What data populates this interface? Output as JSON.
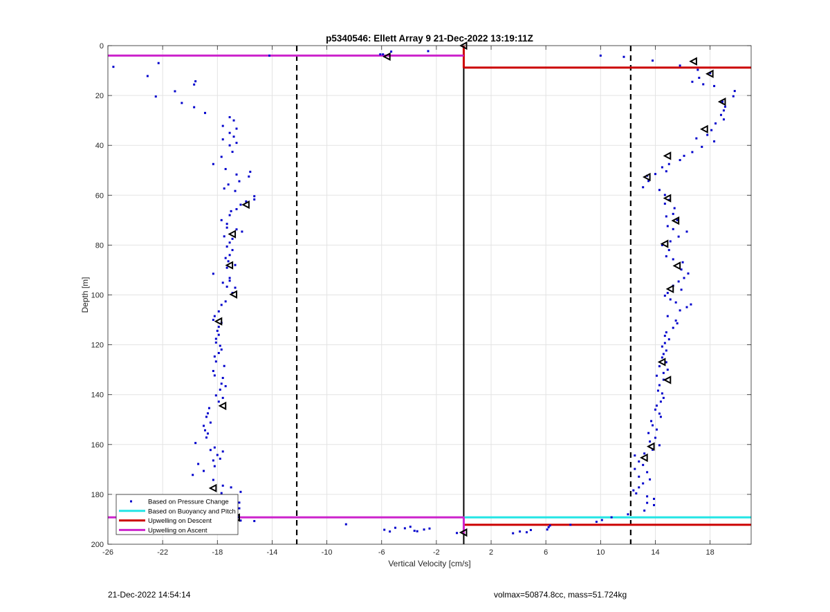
{
  "chart_data": {
    "type": "scatter",
    "title": "p5340546: Ellett Array 9 21-Dec-2022 13:19:11Z",
    "xlabel": "Vertical Velocity [cm/s]",
    "ylabel": "Depth [m]",
    "xlim": [
      -26,
      21
    ],
    "ylim": [
      0,
      200
    ],
    "y_reversed": true,
    "grid": true,
    "x_ticks": [
      -26,
      -22,
      -18,
      -14,
      -10,
      -6,
      -2,
      2,
      6,
      10,
      14,
      18
    ],
    "y_ticks": [
      0,
      20,
      40,
      60,
      80,
      100,
      120,
      140,
      160,
      180,
      200
    ],
    "reference_lines": {
      "dashed_x": [
        -12.2,
        12.2
      ],
      "solid_x": 0
    },
    "legend_position": "bottom-left",
    "legend": [
      "Based on Pressure Change",
      "Based on Buoyancy and Pitch",
      "Upwelling on Descent",
      "Upwelling on Ascent"
    ],
    "colors": {
      "pressure_points": "#0000cc",
      "buoyancy_pitch": "#22e5e5",
      "upwelling_descent": "#cc0000",
      "upwelling_ascent": "#cc22cc",
      "markers": "#000000"
    },
    "series": [
      {
        "name": "Based on Pressure Change",
        "points": [
          [
            -25.6,
            8.5
          ],
          [
            -22.3,
            7
          ],
          [
            -23.1,
            12.2
          ],
          [
            -22.5,
            20.4
          ],
          [
            -21.1,
            18.3
          ],
          [
            -20.6,
            23
          ],
          [
            -19.6,
            14.3
          ],
          [
            -19.7,
            15.6
          ],
          [
            -19.7,
            24.7
          ],
          [
            -18.9,
            27
          ],
          [
            -17.1,
            28.7
          ],
          [
            -16.8,
            30
          ],
          [
            -17.6,
            32.2
          ],
          [
            -16.6,
            33.3
          ],
          [
            -17.1,
            35
          ],
          [
            -16.8,
            36.5
          ],
          [
            -17.6,
            37.6
          ],
          [
            -16.6,
            39
          ],
          [
            -17.1,
            40
          ],
          [
            -16.9,
            42.6
          ],
          [
            -17.7,
            44.6
          ],
          [
            -18.3,
            47.5
          ],
          [
            -17.4,
            49.5
          ],
          [
            -16.6,
            51.7
          ],
          [
            -15.6,
            50.6
          ],
          [
            -15.7,
            52.5
          ],
          [
            -16.4,
            54.4
          ],
          [
            -17.2,
            55.7
          ],
          [
            -17.5,
            57.3
          ],
          [
            -16.7,
            58.3
          ],
          [
            -15.3,
            60.4
          ],
          [
            -15.3,
            61.7
          ],
          [
            -15.9,
            62.5
          ],
          [
            -16.3,
            63.8
          ],
          [
            -16.6,
            65.6
          ],
          [
            -17.0,
            66.4
          ],
          [
            -17.1,
            68
          ],
          [
            -17.7,
            70
          ],
          [
            -17.3,
            71.5
          ],
          [
            -17.3,
            73
          ],
          [
            -16.6,
            73.7
          ],
          [
            -16.2,
            74.6
          ],
          [
            -17.5,
            76.5
          ],
          [
            -16.9,
            77.5
          ],
          [
            -17.1,
            79
          ],
          [
            -17.3,
            80.6
          ],
          [
            -16.9,
            82
          ],
          [
            -17.1,
            84
          ],
          [
            -17.4,
            85.2
          ],
          [
            -17.2,
            86.5
          ],
          [
            -16.7,
            88
          ],
          [
            -17.3,
            89.1
          ],
          [
            -18.3,
            91.5
          ],
          [
            -17.1,
            93.2
          ],
          [
            -17.1,
            94.3
          ],
          [
            -17.6,
            95.1
          ],
          [
            -17.3,
            96.7
          ],
          [
            -16.7,
            97.1
          ],
          [
            -16.9,
            99.2
          ],
          [
            -17.4,
            102.6
          ],
          [
            -17.7,
            104
          ],
          [
            -17.9,
            106.6
          ],
          [
            -18.2,
            108.5
          ],
          [
            -18.3,
            110
          ],
          [
            -17.7,
            111.2
          ],
          [
            -17.9,
            112.8
          ],
          [
            -18.0,
            114.4
          ],
          [
            -17.9,
            116
          ],
          [
            -18.1,
            117.6
          ],
          [
            -18.1,
            119.1
          ],
          [
            -17.8,
            120.4
          ],
          [
            -17.7,
            121.9
          ],
          [
            -17.9,
            123.3
          ],
          [
            -18.2,
            124.7
          ],
          [
            -18.1,
            126.7
          ],
          [
            -17.5,
            128.5
          ],
          [
            -18.3,
            130.5
          ],
          [
            -18.2,
            132.3
          ],
          [
            -17.6,
            133.3
          ],
          [
            -17.7,
            135.6
          ],
          [
            -17.4,
            136.6
          ],
          [
            -17.8,
            138
          ],
          [
            -18.1,
            140.3
          ],
          [
            -17.6,
            141.3
          ],
          [
            -17.9,
            142.8
          ],
          [
            -18.6,
            145.4
          ],
          [
            -18.7,
            147.5
          ],
          [
            -18.8,
            148.9
          ],
          [
            -18.5,
            151.2
          ],
          [
            -19.0,
            152.5
          ],
          [
            -18.9,
            154.3
          ],
          [
            -18.7,
            155.6
          ],
          [
            -18.8,
            157.2
          ],
          [
            -19.6,
            159.4
          ],
          [
            -18.2,
            161.2
          ],
          [
            -18.5,
            162.2
          ],
          [
            -17.6,
            162.8
          ],
          [
            -18.0,
            164.2
          ],
          [
            -17.8,
            165.7
          ],
          [
            -18.3,
            166.4
          ],
          [
            -19.4,
            167.8
          ],
          [
            -18.2,
            168.7
          ],
          [
            -19.0,
            170.6
          ],
          [
            -19.8,
            172.2
          ],
          [
            -18.3,
            174.2
          ],
          [
            -17.6,
            176.5
          ],
          [
            -17.0,
            177.2
          ],
          [
            -17.7,
            179.5
          ],
          [
            -16.3,
            179
          ],
          [
            -16.9,
            181.4
          ],
          [
            -16.4,
            183.3
          ],
          [
            -16.4,
            185.6
          ],
          [
            -16.7,
            187.4
          ],
          [
            -16.5,
            189.1
          ],
          [
            -16.3,
            190.5
          ],
          [
            -15.3,
            190.7
          ],
          [
            -14.2,
            4
          ],
          [
            -5.9,
            3.5
          ],
          [
            -5.3,
            2.4
          ],
          [
            -2.6,
            2.2
          ],
          [
            -6.1,
            3.5
          ],
          [
            -8.6,
            192
          ],
          [
            -5.8,
            194.2
          ],
          [
            -5.4,
            194.9
          ],
          [
            -5.0,
            193.4
          ],
          [
            -4.3,
            193.6
          ],
          [
            -3.9,
            193.0
          ],
          [
            -3.4,
            194.8
          ],
          [
            -2.9,
            194.1
          ],
          [
            -2.5,
            193.7
          ],
          [
            -3.6,
            194.6
          ],
          [
            -0.5,
            195.5
          ],
          [
            10.0,
            4
          ],
          [
            11.7,
            4.5
          ],
          [
            13.8,
            6
          ],
          [
            15.8,
            8
          ],
          [
            17.1,
            9.7
          ],
          [
            18.0,
            11
          ],
          [
            17.2,
            12.9
          ],
          [
            16.7,
            14.5
          ],
          [
            17.5,
            15.5
          ],
          [
            18.3,
            16.2
          ],
          [
            19.8,
            18.2
          ],
          [
            19.7,
            20.3
          ],
          [
            18.9,
            22.5
          ],
          [
            19.1,
            24.5
          ],
          [
            19.0,
            26
          ],
          [
            18.8,
            27.8
          ],
          [
            19.0,
            29.6
          ],
          [
            18.4,
            31.2
          ],
          [
            18.1,
            33.9
          ],
          [
            17.8,
            35.8
          ],
          [
            17.0,
            37.2
          ],
          [
            18.3,
            38.4
          ],
          [
            17.4,
            40.6
          ],
          [
            16.7,
            42.7
          ],
          [
            16.1,
            44.2
          ],
          [
            15.8,
            45.9
          ],
          [
            15.0,
            47.5
          ],
          [
            14.5,
            48.8
          ],
          [
            14.8,
            50.4
          ],
          [
            14.0,
            51.5
          ],
          [
            13.4,
            52.2
          ],
          [
            13.5,
            54.3
          ],
          [
            13.1,
            56.8
          ],
          [
            14.3,
            57.9
          ],
          [
            14.7,
            59.9
          ],
          [
            15.0,
            61.9
          ],
          [
            14.7,
            63.4
          ],
          [
            15.4,
            65.2
          ],
          [
            15.3,
            67.5
          ],
          [
            14.8,
            68.5
          ],
          [
            15.6,
            70
          ],
          [
            14.9,
            72.4
          ],
          [
            15.3,
            73.6
          ],
          [
            16.3,
            74.6
          ],
          [
            15.7,
            76.6
          ],
          [
            15.1,
            78.5
          ],
          [
            14.5,
            80
          ],
          [
            15.0,
            82
          ],
          [
            14.8,
            84.5
          ],
          [
            15.3,
            85.7
          ],
          [
            16.0,
            86.9
          ],
          [
            15.9,
            89.8
          ],
          [
            16.4,
            91.4
          ],
          [
            16.1,
            93.2
          ],
          [
            15.7,
            94.6
          ],
          [
            15.3,
            96.3
          ],
          [
            15.9,
            97.9
          ],
          [
            14.9,
            99.2
          ],
          [
            14.7,
            100.3
          ],
          [
            15.1,
            101.8
          ],
          [
            15.5,
            103
          ],
          [
            16.6,
            103.8
          ],
          [
            16.3,
            104.9
          ],
          [
            15.8,
            106.2
          ],
          [
            14.9,
            108.5
          ],
          [
            15.5,
            110.3
          ],
          [
            15.6,
            111.4
          ],
          [
            15.3,
            113.2
          ],
          [
            14.8,
            115
          ],
          [
            14.7,
            116.4
          ],
          [
            15.0,
            117.8
          ],
          [
            14.7,
            119.3
          ],
          [
            14.5,
            120.7
          ],
          [
            14.8,
            122.3
          ],
          [
            14.6,
            123.7
          ],
          [
            14.5,
            125.1
          ],
          [
            14.8,
            127
          ],
          [
            14.3,
            128.6
          ],
          [
            14.9,
            130
          ],
          [
            14.6,
            131.3
          ],
          [
            14.1,
            132.4
          ],
          [
            14.6,
            134
          ],
          [
            14.3,
            136.2
          ],
          [
            14.2,
            138.4
          ],
          [
            14.5,
            139.5
          ],
          [
            14.6,
            141.3
          ],
          [
            14.4,
            142.8
          ],
          [
            14.1,
            144.4
          ],
          [
            14.0,
            146
          ],
          [
            14.3,
            147.6
          ],
          [
            14.4,
            148.9
          ],
          [
            13.7,
            150.6
          ],
          [
            13.8,
            152.3
          ],
          [
            14.1,
            154
          ],
          [
            13.5,
            155.4
          ],
          [
            14.0,
            157.3
          ],
          [
            13.6,
            158.8
          ],
          [
            14.3,
            160.3
          ],
          [
            13.8,
            162.1
          ],
          [
            13.2,
            163.6
          ],
          [
            12.5,
            164.4
          ],
          [
            12.8,
            166.8
          ],
          [
            13.1,
            168.2
          ],
          [
            12.5,
            169.8
          ],
          [
            13.4,
            171.1
          ],
          [
            12.8,
            172.9
          ],
          [
            13.6,
            174
          ],
          [
            13.1,
            175.6
          ],
          [
            12.8,
            177.2
          ],
          [
            12.4,
            178.4
          ],
          [
            12.6,
            179.6
          ],
          [
            13.4,
            180.8
          ],
          [
            13.9,
            181.8
          ],
          [
            13.4,
            183.4
          ],
          [
            13.9,
            184.3
          ],
          [
            13.2,
            186.5
          ],
          [
            12.0,
            188
          ],
          [
            10.8,
            189.2
          ],
          [
            10.1,
            190.3
          ],
          [
            9.7,
            191
          ],
          [
            7.8,
            192.2
          ],
          [
            6.3,
            192.5
          ],
          [
            6.2,
            193.2
          ],
          [
            6.1,
            194.1
          ],
          [
            4.9,
            194.3
          ],
          [
            4.6,
            195.2
          ],
          [
            4.1,
            194.9
          ],
          [
            3.6,
            195.6
          ]
        ]
      },
      {
        "name": "Based on Buoyancy and Pitch",
        "lines": [
          {
            "x": [
              0,
              21
            ],
            "y": 189.2
          }
        ]
      },
      {
        "name": "Upwelling on Descent",
        "lines": [
          {
            "x": [
              0,
              21
            ],
            "y": 8.8
          },
          {
            "x": [
              0,
              21
            ],
            "y": 192.2
          },
          {
            "x": [
              0,
              0
            ],
            "y_range": [
              0,
              9
            ]
          }
        ]
      },
      {
        "name": "Upwelling on Ascent",
        "lines": [
          {
            "x": [
              -26,
              0
            ],
            "y": 4
          },
          {
            "x": [
              -26,
              0
            ],
            "y": 189.2
          },
          {
            "x": [
              0,
              0
            ],
            "y_range": [
              189,
              196
            ]
          }
        ]
      },
      {
        "name": "markers",
        "marker": "triangle-left",
        "points": [
          [
            0,
            0
          ],
          [
            -5.6,
            4.4
          ],
          [
            16.8,
            6.3
          ],
          [
            18.0,
            11.3
          ],
          [
            18.9,
            22.5
          ],
          [
            17.6,
            33.5
          ],
          [
            14.9,
            44.2
          ],
          [
            13.4,
            52.7
          ],
          [
            14.9,
            61.2
          ],
          [
            15.5,
            70.2
          ],
          [
            14.7,
            79.5
          ],
          [
            15.6,
            88.3
          ],
          [
            15.1,
            97.6
          ],
          [
            14.5,
            126.9
          ],
          [
            14.9,
            134.1
          ],
          [
            13.7,
            160.8
          ],
          [
            13.2,
            165.3
          ],
          [
            -15.9,
            63.8
          ],
          [
            -16.9,
            75.6
          ],
          [
            -17.1,
            88.1
          ],
          [
            -16.8,
            99.8
          ],
          [
            -17.9,
            110.6
          ],
          [
            -17.6,
            144.5
          ],
          [
            -18.3,
            177.5
          ],
          [
            -16.6,
            189.3
          ],
          [
            0,
            195.3
          ]
        ]
      }
    ]
  },
  "footer": {
    "timestamp": "21-Dec-2022 14:54:14",
    "vehicle_info": "volmax=50874.8cc, mass=51.724kg"
  }
}
